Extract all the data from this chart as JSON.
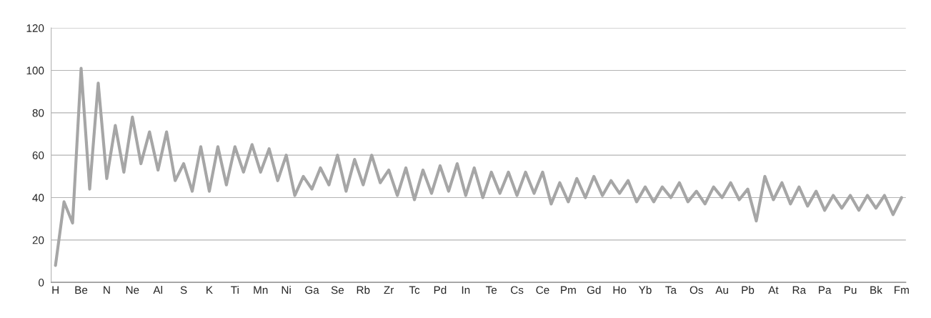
{
  "chart_data": {
    "type": "line",
    "categories": [
      "H",
      null,
      null,
      "Be",
      null,
      null,
      "N",
      null,
      null,
      "Ne",
      null,
      null,
      "Al",
      null,
      null,
      "S",
      null,
      null,
      "K",
      null,
      null,
      "Ti",
      null,
      null,
      "Mn",
      null,
      null,
      "Ni",
      null,
      null,
      "Ga",
      null,
      null,
      "Se",
      null,
      null,
      "Rb",
      null,
      null,
      "Zr",
      null,
      null,
      "Tc",
      null,
      null,
      "Pd",
      null,
      null,
      "In",
      null,
      null,
      "Te",
      null,
      null,
      "Cs",
      null,
      null,
      "Ce",
      null,
      null,
      "Pm",
      null,
      null,
      "Gd",
      null,
      null,
      "Ho",
      null,
      null,
      "Yb",
      null,
      null,
      "Ta",
      null,
      null,
      "Os",
      null,
      null,
      "Au",
      null,
      null,
      "Pb",
      null,
      null,
      "At",
      null,
      null,
      "Ra",
      null,
      null,
      "Pa",
      null,
      null,
      "Pu",
      null,
      null,
      "Bk",
      null,
      null,
      "Fm"
    ],
    "series": [
      {
        "color": "#a6a6a6",
        "values": [
          8,
          38,
          28,
          101,
          44,
          94,
          49,
          74,
          52,
          78,
          56,
          71,
          53,
          71,
          48,
          56,
          43,
          64,
          43,
          64,
          46,
          64,
          52,
          65,
          52,
          63,
          48,
          60,
          41,
          50,
          44,
          54,
          46,
          60,
          43,
          58,
          46,
          60,
          47,
          53,
          41,
          54,
          39,
          53,
          42,
          55,
          43,
          56,
          41,
          54,
          40,
          52,
          42,
          52,
          41,
          52,
          42,
          52,
          37,
          47,
          38,
          49,
          40,
          50,
          41,
          48,
          42,
          48,
          38,
          45,
          38,
          45,
          40,
          47,
          38,
          43,
          37,
          45,
          40,
          47,
          39,
          44,
          29,
          50,
          39,
          47,
          37,
          45,
          36,
          43,
          34,
          41,
          35,
          41,
          34,
          41,
          35,
          41,
          32,
          40
        ]
      }
    ],
    "ylim": [
      0,
      120
    ],
    "yticks": [
      0,
      20,
      40,
      60,
      80,
      100,
      120
    ],
    "grid": "y",
    "marker": "none",
    "line_style": "solid",
    "legend": false
  }
}
